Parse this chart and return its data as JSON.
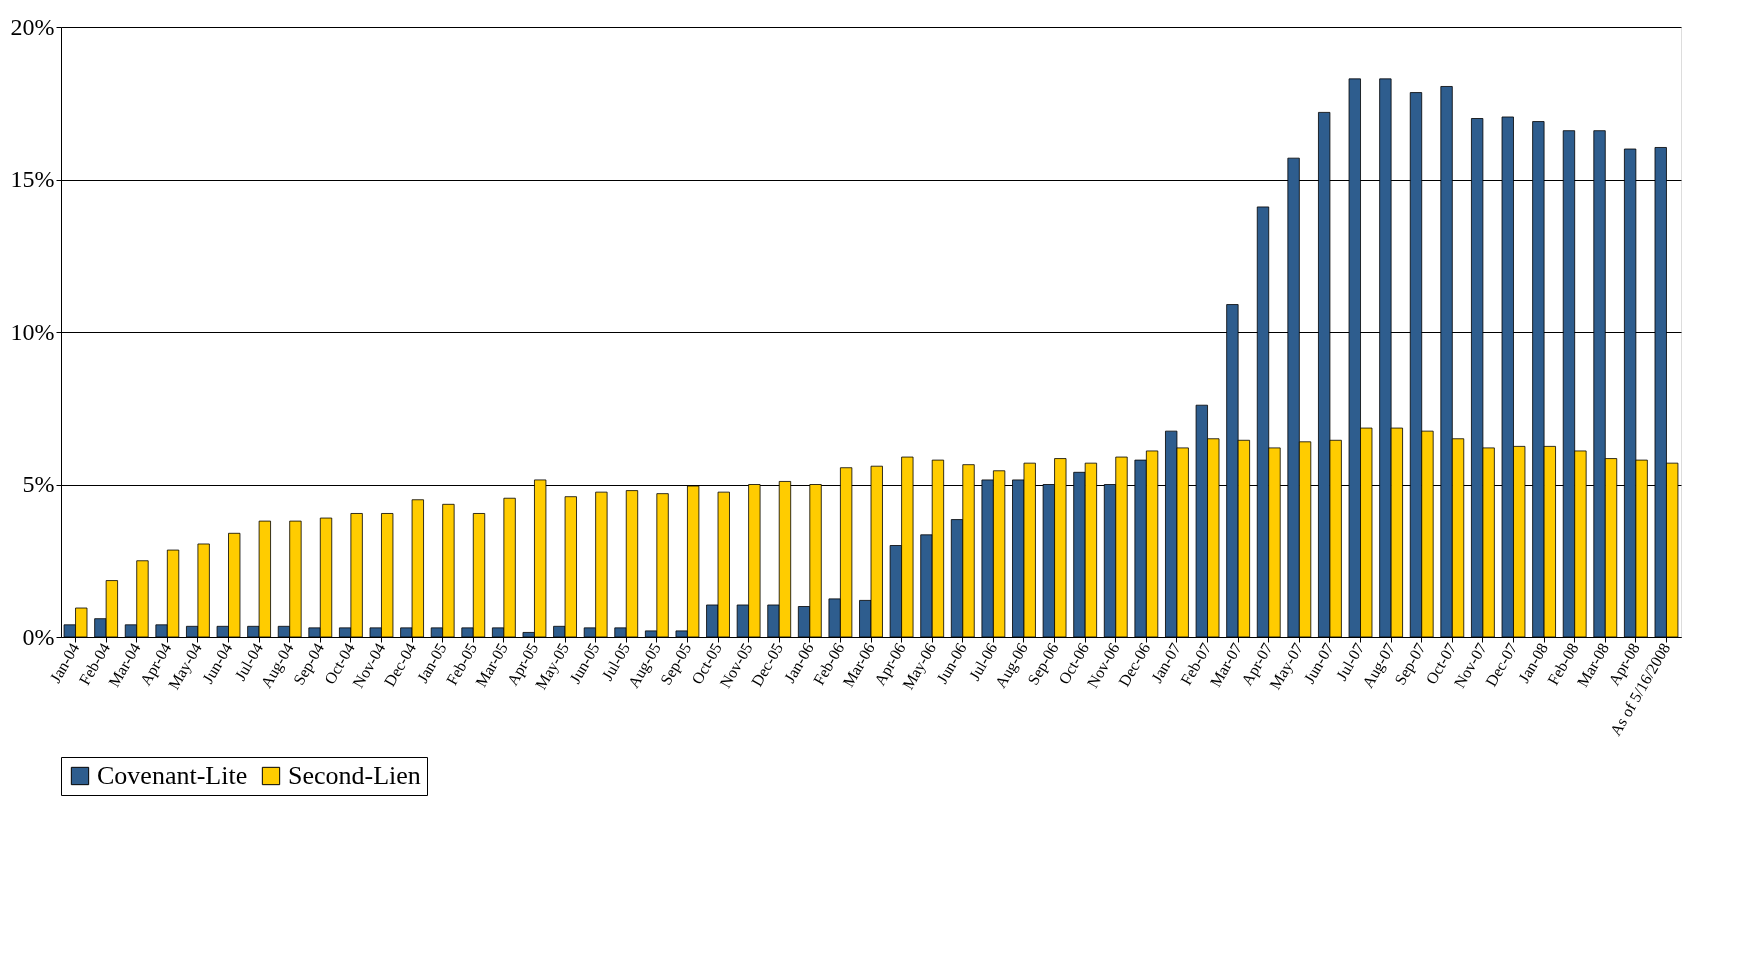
{
  "chart_data": {
    "type": "bar",
    "categories": [
      "Jan-04",
      "Feb-04",
      "Mar-04",
      "Apr-04",
      "May-04",
      "Jun-04",
      "Jul-04",
      "Aug-04",
      "Sep-04",
      "Oct-04",
      "Nov-04",
      "Dec-04",
      "Jan-05",
      "Feb-05",
      "Mar-05",
      "Apr-05",
      "May-05",
      "Jun-05",
      "Jul-05",
      "Aug-05",
      "Sep-05",
      "Oct-05",
      "Nov-05",
      "Dec-05",
      "Jan-06",
      "Feb-06",
      "Mar-06",
      "Apr-06",
      "May-06",
      "Jun-06",
      "Jul-06",
      "Aug-06",
      "Sep-06",
      "Oct-06",
      "Nov-06",
      "Dec-06",
      "Jan-07",
      "Feb-07",
      "Mar-07",
      "Apr-07",
      "May-07",
      "Jun-07",
      "Jul-07",
      "Aug-07",
      "Sep-07",
      "Oct-07",
      "Nov-07",
      "Dec-07",
      "Jan-08",
      "Feb-08",
      "Mar-08",
      "Apr-08",
      "As of 5/16/2008"
    ],
    "series": [
      {
        "name": "Covenant-Lite",
        "color": "#2e5d8e",
        "values": [
          0.4,
          0.6,
          0.4,
          0.4,
          0.35,
          0.35,
          0.35,
          0.35,
          0.3,
          0.3,
          0.3,
          0.3,
          0.3,
          0.3,
          0.3,
          0.15,
          0.35,
          0.3,
          0.3,
          0.2,
          0.2,
          1.05,
          1.05,
          1.05,
          1.0,
          1.25,
          1.2,
          3.0,
          3.35,
          3.85,
          5.15,
          5.15,
          5.0,
          5.4,
          5.0,
          5.8,
          6.75,
          7.6,
          10.9,
          14.1,
          15.7,
          17.2,
          18.3,
          18.3,
          17.85,
          18.05,
          17.0,
          17.05,
          16.9,
          16.6,
          16.6,
          16.0,
          16.05
        ]
      },
      {
        "name": "Second-Lien",
        "color": "#ffcc00",
        "values": [
          0.95,
          1.85,
          2.5,
          2.85,
          3.05,
          3.4,
          3.8,
          3.8,
          3.9,
          4.05,
          4.05,
          4.5,
          4.35,
          4.05,
          4.55,
          5.15,
          4.6,
          4.75,
          4.8,
          4.7,
          4.95,
          4.75,
          5.0,
          5.1,
          5.0,
          5.55,
          5.6,
          5.9,
          5.8,
          5.65,
          5.45,
          5.7,
          5.85,
          5.7,
          5.9,
          6.1,
          6.2,
          6.5,
          6.45,
          6.2,
          6.4,
          6.45,
          6.85,
          6.85,
          6.75,
          6.5,
          6.2,
          6.25,
          6.25,
          6.1,
          5.85,
          5.8,
          5.7
        ]
      }
    ],
    "ylim": [
      0,
      20
    ],
    "yticks": [
      {
        "value": 0,
        "label": "0%"
      },
      {
        "value": 5,
        "label": "5%"
      },
      {
        "value": 10,
        "label": "10%"
      },
      {
        "value": 15,
        "label": "15%"
      },
      {
        "value": 20,
        "label": "20%"
      }
    ],
    "grid": "y",
    "legend": "bottom"
  }
}
